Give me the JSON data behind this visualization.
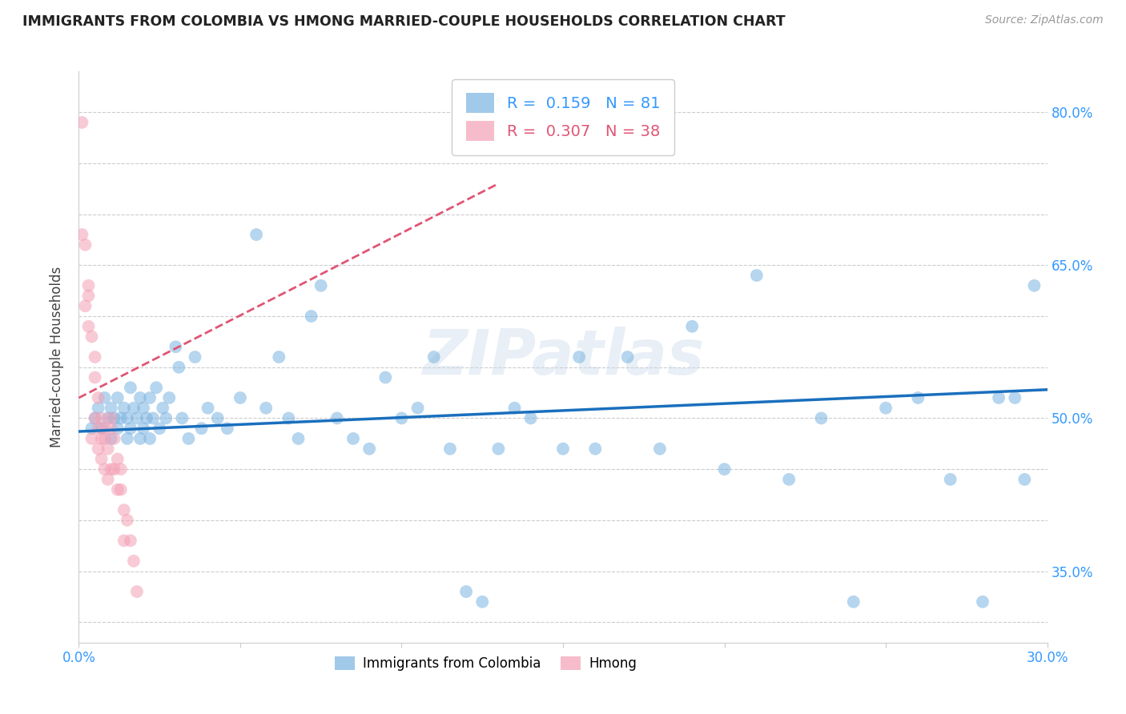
{
  "title": "IMMIGRANTS FROM COLOMBIA VS HMONG MARRIED-COUPLE HOUSEHOLDS CORRELATION CHART",
  "source": "Source: ZipAtlas.com",
  "ylabel": "Married-couple Households",
  "xlim": [
    0.0,
    0.3
  ],
  "ylim": [
    0.28,
    0.84
  ],
  "ytick_positions": [
    0.3,
    0.35,
    0.4,
    0.45,
    0.5,
    0.55,
    0.6,
    0.65,
    0.7,
    0.75,
    0.8
  ],
  "ytick_labels_right": [
    "",
    "35.0%",
    "",
    "",
    "50.0%",
    "",
    "",
    "65.0%",
    "",
    "",
    "80.0%"
  ],
  "xtick_vals": [
    0.0,
    0.05,
    0.1,
    0.15,
    0.2,
    0.25,
    0.3
  ],
  "xtick_labels": [
    "0.0%",
    "",
    "",
    "",
    "",
    "",
    "30.0%"
  ],
  "legend1_r": "0.159",
  "legend1_n": "81",
  "legend2_r": "0.307",
  "legend2_n": "38",
  "color_colombia": "#7ab3e0",
  "color_hmong": "#f4a0b5",
  "color_trendline_colombia": "#1a6fbd",
  "color_trendline_hmong": "#e05575",
  "color_axis_labels": "#3399ff",
  "color_grid": "#cccccc",
  "background_color": "#ffffff",
  "watermark": "ZIPatlas",
  "colombia_x": [
    0.004,
    0.005,
    0.006,
    0.007,
    0.008,
    0.009,
    0.01,
    0.01,
    0.011,
    0.012,
    0.012,
    0.013,
    0.014,
    0.015,
    0.015,
    0.016,
    0.016,
    0.017,
    0.018,
    0.019,
    0.019,
    0.02,
    0.02,
    0.021,
    0.022,
    0.022,
    0.023,
    0.024,
    0.025,
    0.026,
    0.027,
    0.028,
    0.03,
    0.031,
    0.032,
    0.034,
    0.036,
    0.038,
    0.04,
    0.043,
    0.046,
    0.05,
    0.055,
    0.058,
    0.062,
    0.065,
    0.068,
    0.072,
    0.075,
    0.08,
    0.085,
    0.09,
    0.095,
    0.1,
    0.105,
    0.11,
    0.115,
    0.12,
    0.125,
    0.13,
    0.135,
    0.14,
    0.15,
    0.155,
    0.16,
    0.17,
    0.18,
    0.19,
    0.2,
    0.21,
    0.22,
    0.23,
    0.24,
    0.25,
    0.26,
    0.27,
    0.28,
    0.285,
    0.29,
    0.293,
    0.296
  ],
  "colombia_y": [
    0.49,
    0.5,
    0.51,
    0.49,
    0.52,
    0.5,
    0.48,
    0.51,
    0.5,
    0.49,
    0.52,
    0.5,
    0.51,
    0.48,
    0.5,
    0.49,
    0.53,
    0.51,
    0.5,
    0.48,
    0.52,
    0.49,
    0.51,
    0.5,
    0.48,
    0.52,
    0.5,
    0.53,
    0.49,
    0.51,
    0.5,
    0.52,
    0.57,
    0.55,
    0.5,
    0.48,
    0.56,
    0.49,
    0.51,
    0.5,
    0.49,
    0.52,
    0.68,
    0.51,
    0.56,
    0.5,
    0.48,
    0.6,
    0.63,
    0.5,
    0.48,
    0.47,
    0.54,
    0.5,
    0.51,
    0.56,
    0.47,
    0.33,
    0.32,
    0.47,
    0.51,
    0.5,
    0.47,
    0.56,
    0.47,
    0.56,
    0.47,
    0.59,
    0.45,
    0.64,
    0.44,
    0.5,
    0.32,
    0.51,
    0.52,
    0.44,
    0.32,
    0.52,
    0.52,
    0.44,
    0.63
  ],
  "hmong_x": [
    0.001,
    0.001,
    0.002,
    0.002,
    0.003,
    0.003,
    0.003,
    0.004,
    0.004,
    0.005,
    0.005,
    0.005,
    0.006,
    0.006,
    0.006,
    0.007,
    0.007,
    0.007,
    0.008,
    0.008,
    0.008,
    0.009,
    0.009,
    0.01,
    0.01,
    0.01,
    0.011,
    0.011,
    0.012,
    0.012,
    0.013,
    0.013,
    0.014,
    0.014,
    0.015,
    0.016,
    0.017,
    0.018
  ],
  "hmong_y": [
    0.79,
    0.68,
    0.67,
    0.61,
    0.63,
    0.62,
    0.59,
    0.58,
    0.48,
    0.56,
    0.54,
    0.5,
    0.52,
    0.49,
    0.47,
    0.5,
    0.48,
    0.46,
    0.49,
    0.48,
    0.45,
    0.47,
    0.44,
    0.5,
    0.49,
    0.45,
    0.48,
    0.45,
    0.46,
    0.43,
    0.45,
    0.43,
    0.41,
    0.38,
    0.4,
    0.38,
    0.36,
    0.33
  ],
  "hmong_trendline_x": [
    0.0,
    0.13
  ],
  "hmong_trendline_y": [
    0.52,
    0.73
  ],
  "colombia_trendline_x": [
    0.0,
    0.3
  ],
  "colombia_trendline_y": [
    0.487,
    0.528
  ]
}
